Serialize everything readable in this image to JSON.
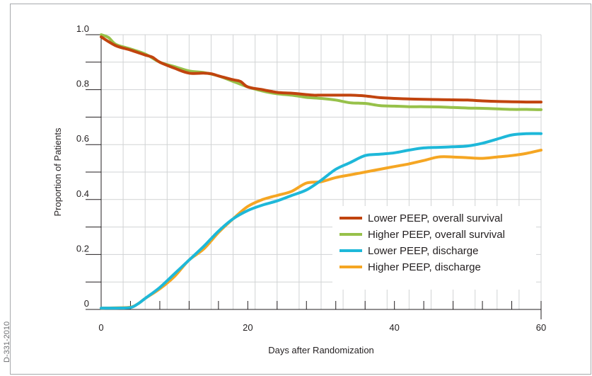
{
  "figure": {
    "side_label": "D-331-2010"
  },
  "chart_data": {
    "type": "line",
    "title": "",
    "xlabel": "Days after Randomization",
    "ylabel": "Proportion of Patients",
    "xlim": [
      0,
      60
    ],
    "ylim": [
      0,
      1.0
    ],
    "x_ticks": [
      0,
      20,
      40,
      60
    ],
    "y_ticks": [
      0,
      0.2,
      0.4,
      0.6,
      0.8,
      1.0
    ],
    "x_tick_labels": [
      "0",
      "20",
      "40",
      "60"
    ],
    "y_tick_labels": [
      "0",
      "0.2",
      "0.4",
      "0.6",
      "0.8",
      "1.0"
    ],
    "grid": true,
    "legend_position": "lower-right",
    "series": [
      {
        "name": "Lower PEEP, overall survival",
        "color": "#c1440e",
        "x": [
          0,
          2,
          4,
          6,
          7,
          8,
          10,
          12,
          14,
          15,
          16,
          17,
          18,
          19,
          20,
          22,
          24,
          26,
          28,
          29,
          30,
          32,
          34,
          36,
          38,
          40,
          42,
          44,
          46,
          48,
          50,
          52,
          54,
          56,
          58,
          60
        ],
        "y": [
          0.992,
          0.96,
          0.944,
          0.926,
          0.918,
          0.9,
          0.878,
          0.86,
          0.86,
          0.858,
          0.85,
          0.843,
          0.836,
          0.83,
          0.81,
          0.8,
          0.79,
          0.787,
          0.782,
          0.78,
          0.78,
          0.78,
          0.78,
          0.777,
          0.771,
          0.768,
          0.766,
          0.765,
          0.764,
          0.763,
          0.762,
          0.759,
          0.757,
          0.756,
          0.755,
          0.755
        ]
      },
      {
        "name": "Higher PEEP, overall survival",
        "color": "#97c14a",
        "x": [
          0,
          1,
          2,
          4,
          6,
          8,
          10,
          12,
          14,
          16,
          18,
          20,
          22,
          24,
          26,
          28,
          30,
          32,
          34,
          36,
          38,
          40,
          42,
          44,
          46,
          48,
          50,
          52,
          54,
          56,
          58,
          60
        ],
        "y": [
          1.0,
          0.99,
          0.965,
          0.948,
          0.93,
          0.9,
          0.884,
          0.868,
          0.862,
          0.85,
          0.83,
          0.81,
          0.795,
          0.785,
          0.78,
          0.772,
          0.768,
          0.762,
          0.752,
          0.75,
          0.742,
          0.74,
          0.738,
          0.738,
          0.737,
          0.735,
          0.733,
          0.732,
          0.73,
          0.728,
          0.728,
          0.727
        ]
      },
      {
        "name": "Lower PEEP, discharge",
        "color": "#1eb8d9",
        "x": [
          0,
          2,
          4,
          5,
          6,
          8,
          10,
          12,
          14,
          16,
          18,
          20,
          22,
          24,
          26,
          28,
          30,
          32,
          34,
          36,
          38,
          40,
          42,
          44,
          46,
          48,
          50,
          52,
          54,
          56,
          58,
          60
        ],
        "y": [
          0.005,
          0.005,
          0.007,
          0.02,
          0.04,
          0.08,
          0.13,
          0.18,
          0.23,
          0.285,
          0.33,
          0.36,
          0.38,
          0.395,
          0.415,
          0.435,
          0.47,
          0.51,
          0.535,
          0.56,
          0.565,
          0.57,
          0.58,
          0.588,
          0.59,
          0.592,
          0.595,
          0.605,
          0.62,
          0.635,
          0.64,
          0.64
        ]
      },
      {
        "name": "Higher PEEP, discharge",
        "color": "#f5a623",
        "x": [
          0,
          2,
          4,
          5,
          6,
          8,
          10,
          12,
          14,
          16,
          18,
          20,
          22,
          24,
          26,
          28,
          30,
          32,
          34,
          36,
          38,
          40,
          42,
          44,
          46,
          48,
          50,
          52,
          54,
          56,
          58,
          60
        ],
        "y": [
          0.005,
          0.006,
          0.008,
          0.02,
          0.04,
          0.075,
          0.12,
          0.18,
          0.22,
          0.28,
          0.33,
          0.375,
          0.4,
          0.415,
          0.43,
          0.46,
          0.465,
          0.48,
          0.49,
          0.5,
          0.51,
          0.52,
          0.53,
          0.542,
          0.555,
          0.555,
          0.552,
          0.55,
          0.555,
          0.56,
          0.568,
          0.58
        ]
      }
    ]
  }
}
